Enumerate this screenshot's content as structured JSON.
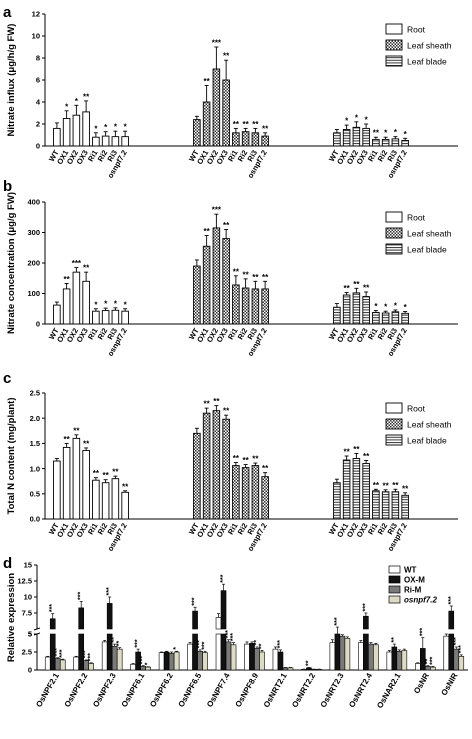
{
  "colors": {
    "wt": "#ffffff",
    "ox": "#111111",
    "ri": "#7a7a7a",
    "osnpf": "#dedbc4"
  },
  "chart_data": [
    {
      "panel": "a",
      "type": "bar",
      "ylabel": "Nitrate influx (μg/h/g FW)",
      "ylim": [
        0,
        12
      ],
      "yticks": [
        0,
        2,
        4,
        6,
        8,
        10,
        12
      ],
      "categories": [
        "WT",
        "OX1",
        "OX2",
        "OX3",
        "Ri1",
        "Ri2",
        "Ri3",
        "osnpf7.2"
      ],
      "legend": [
        "Root",
        "Leaf sheath",
        "Leaf blade"
      ],
      "series": [
        {
          "name": "Root",
          "values": [
            1.6,
            2.5,
            2.8,
            3.1,
            0.8,
            0.9,
            0.85,
            0.85
          ],
          "errors": [
            0.5,
            0.7,
            0.9,
            1.0,
            0.4,
            0.4,
            0.5,
            0.5
          ],
          "stars": [
            "",
            "*",
            "*",
            "**",
            "*",
            "*",
            "*",
            "*"
          ]
        },
        {
          "name": "Leaf sheath",
          "values": [
            2.4,
            4.0,
            7.0,
            6.0,
            1.2,
            1.3,
            1.2,
            0.9
          ],
          "errors": [
            0.3,
            1.5,
            2.0,
            1.8,
            0.4,
            0.3,
            0.4,
            0.3
          ],
          "stars": [
            "",
            "**",
            "***",
            "**",
            "**",
            "**",
            "**",
            "**"
          ]
        },
        {
          "name": "Leaf blade",
          "values": [
            1.2,
            1.5,
            1.7,
            1.6,
            0.6,
            0.6,
            0.65,
            0.5
          ],
          "errors": [
            0.3,
            0.4,
            0.5,
            0.4,
            0.2,
            0.2,
            0.2,
            0.2
          ],
          "stars": [
            "",
            "*",
            "*",
            "*",
            "**",
            "*",
            "*",
            "*"
          ]
        }
      ]
    },
    {
      "panel": "b",
      "type": "bar",
      "ylabel": "Nitrate concentration (μg/g FW)",
      "ylim": [
        0,
        400
      ],
      "yticks": [
        0,
        100,
        200,
        300,
        400
      ],
      "categories": [
        "WT",
        "OX1",
        "OX2",
        "OX3",
        "Ri1",
        "Ri2",
        "Ri3",
        "osnpf7.2"
      ],
      "legend": [
        "Root",
        "Leaf sheath",
        "Leaf blade"
      ],
      "series": [
        {
          "name": "Root",
          "values": [
            62,
            115,
            170,
            140,
            42,
            44,
            45,
            42
          ],
          "errors": [
            10,
            18,
            15,
            30,
            8,
            8,
            8,
            8
          ],
          "stars": [
            "",
            "**",
            "***",
            "**",
            "*",
            "*",
            "*",
            "*"
          ]
        },
        {
          "name": "Leaf sheath",
          "values": [
            190,
            255,
            315,
            280,
            128,
            118,
            115,
            115
          ],
          "errors": [
            20,
            35,
            45,
            30,
            30,
            30,
            25,
            25
          ],
          "stars": [
            "",
            "**",
            "***",
            "**",
            "**",
            "**",
            "**",
            "**"
          ]
        },
        {
          "name": "Leaf blade",
          "values": [
            55,
            95,
            102,
            90,
            38,
            36,
            40,
            35
          ],
          "errors": [
            12,
            8,
            15,
            15,
            6,
            6,
            6,
            6
          ],
          "stars": [
            "",
            "**",
            "**",
            "**",
            "*",
            "*",
            "*",
            "*"
          ]
        }
      ]
    },
    {
      "panel": "c",
      "type": "bar",
      "ylabel": "Total N content (mg/plant)",
      "ylim": [
        0,
        2.5
      ],
      "yticks": [
        0,
        0.5,
        1.0,
        1.5,
        2.0,
        2.5
      ],
      "categories": [
        "WT",
        "OX1",
        "OX2",
        "OX3",
        "Ri1",
        "Ri2",
        "Ri3",
        "osnpf7.2"
      ],
      "legend": [
        "Root",
        "Leaf sheath",
        "Leaf blade"
      ],
      "series": [
        {
          "name": "Root",
          "values": [
            1.15,
            1.42,
            1.6,
            1.36,
            0.77,
            0.72,
            0.8,
            0.53
          ],
          "errors": [
            0.05,
            0.08,
            0.07,
            0.05,
            0.05,
            0.06,
            0.05,
            0.03
          ],
          "stars": [
            "",
            "**",
            "**",
            "**",
            "**",
            "**",
            "**",
            "**"
          ]
        },
        {
          "name": "Leaf sheath",
          "values": [
            1.7,
            2.1,
            2.15,
            1.98,
            1.06,
            1.02,
            1.06,
            0.84
          ],
          "errors": [
            0.1,
            0.1,
            0.1,
            0.08,
            0.06,
            0.06,
            0.05,
            0.08
          ],
          "stars": [
            "",
            "**",
            "**",
            "**",
            "**",
            "**",
            "**",
            "**"
          ]
        },
        {
          "name": "Leaf blade",
          "values": [
            0.72,
            1.17,
            1.2,
            1.1,
            0.56,
            0.54,
            0.54,
            0.47
          ],
          "errors": [
            0.07,
            0.08,
            0.1,
            0.06,
            0.03,
            0.04,
            0.05,
            0.05
          ],
          "stars": [
            "",
            "**",
            "**",
            "**",
            "**",
            "**",
            "**",
            "**"
          ]
        }
      ]
    },
    {
      "panel": "d",
      "type": "bar",
      "ylabel": "Relative expression",
      "broken_axis": true,
      "lower_ylim": [
        0,
        5
      ],
      "lower_yticks": [
        "0",
        "2.5",
        "5"
      ],
      "upper_ylim": [
        5,
        15
      ],
      "upper_yticks": [
        "5",
        "7.5",
        "10",
        "12.5",
        "15"
      ],
      "categories": [
        "OsNPF2.1",
        "OsNPF2.2",
        "OsNPF2.3",
        "OsNPF6.1",
        "OsNPF6.2",
        "OsNPF6.5",
        "OsNPF7.4",
        "OsNPF8.9",
        "OsNRT2.1",
        "OsNRT2.2",
        "OsNRT2.3",
        "OsNRT2.4",
        "OsNAR2.1",
        "OsNR",
        "OsNIR"
      ],
      "legend": [
        "WT",
        "OX-M",
        "Ri-M",
        "osnpf7.2"
      ],
      "series": [
        {
          "name": "WT",
          "values": [
            1.8,
            1.8,
            3.9,
            0.8,
            2.4,
            3.6,
            6.8,
            3.6,
            2.9,
            0.1,
            3.8,
            3.8,
            2.5,
            0.9,
            4.7
          ],
          "errors": [
            0.1,
            0.1,
            0.2,
            0.1,
            0.1,
            0.2,
            0.6,
            0.3,
            0.3,
            0.02,
            0.4,
            0.3,
            0.2,
            0.1,
            0.3
          ]
        },
        {
          "name": "OX-M",
          "values": [
            6.6,
            8.3,
            9.0,
            2.5,
            2.5,
            7.8,
            11.0,
            3.7,
            2.5,
            0.3,
            5.0,
            7.0,
            3.2,
            3.0,
            7.8
          ],
          "errors": [
            0.8,
            1.0,
            1.0,
            0.4,
            0.1,
            0.6,
            1.0,
            0.2,
            0.3,
            0.05,
            0.3,
            0.5,
            0.4,
            1.5,
            0.8
          ]
        },
        {
          "name": "Ri-M",
          "values": [
            1.6,
            1.3,
            3.3,
            0.5,
            2.3,
            2.6,
            3.9,
            3.0,
            0.3,
            0.1,
            4.7,
            3.6,
            2.6,
            0.5,
            2.9
          ],
          "errors": [
            0.1,
            0.1,
            0.3,
            0.1,
            0.2,
            0.2,
            0.3,
            0.2,
            0.05,
            0.02,
            0.2,
            0.2,
            0.2,
            0.1,
            0.3
          ]
        },
        {
          "name": "osnpf7.2",
          "values": [
            1.4,
            0.9,
            2.9,
            0.4,
            2.5,
            2.4,
            3.5,
            2.5,
            0.3,
            0.1,
            4.4,
            3.5,
            2.7,
            0.4,
            1.9
          ],
          "errors": [
            0.1,
            0.1,
            0.2,
            0.05,
            0.1,
            0.2,
            0.3,
            0.2,
            0.05,
            0.02,
            0.2,
            0.2,
            0.2,
            0.1,
            0.2
          ]
        }
      ],
      "stars": [
        [
          "",
          "***",
          "***",
          "***"
        ],
        [
          "",
          "***",
          "***",
          "***"
        ],
        [
          "",
          "***",
          "**",
          "**"
        ],
        [
          "",
          "***",
          "***",
          "*"
        ],
        [
          "",
          "",
          "",
          "*"
        ],
        [
          "",
          "***",
          "***",
          "***"
        ],
        [
          "",
          "***",
          "***",
          "***"
        ],
        [
          "",
          "",
          "**",
          "**"
        ],
        [
          "",
          "***",
          "",
          ""
        ],
        [
          "",
          "**",
          "",
          ""
        ],
        [
          "",
          "***",
          "",
          ""
        ],
        [
          "",
          "***",
          "",
          ""
        ],
        [
          "",
          "**",
          "",
          ""
        ],
        [
          "",
          "***",
          "**",
          "***"
        ],
        [
          "",
          "***",
          "***",
          "***"
        ]
      ]
    }
  ]
}
